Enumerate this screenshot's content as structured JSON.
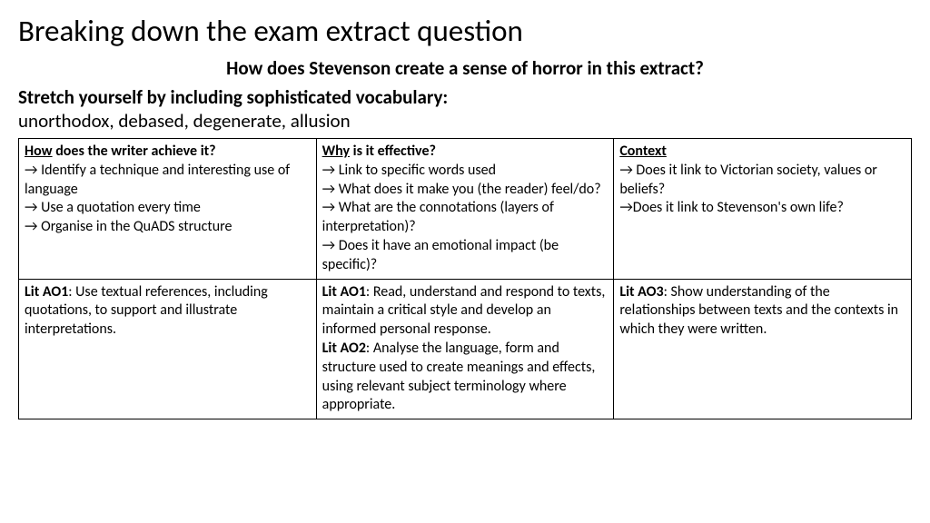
{
  "title": "Breaking down the exam extract question",
  "question": "How does Stevenson create a sense of horror in this extract?",
  "stretch_label": "Stretch yourself by including sophisticated vocabulary:",
  "vocab": "unorthodox, debased, degenerate, allusion",
  "table": {
    "row1": {
      "col1": {
        "header_prefix": "How",
        "header_rest": " does the writer achieve it?",
        "bullets": [
          "→ Identify a technique and interesting use of language",
          "→ Use a quotation every time",
          "→ Organise in the QuADS structure"
        ]
      },
      "col2": {
        "header_prefix": "Why",
        "header_rest": " is it effective?",
        "bullets": [
          "→ Link to specific words used",
          "→ What does it make you (the reader) feel/do?",
          "→ What are the connotations (layers of interpretation)?",
          "→ Does it have an emotional impact (be specific)?"
        ]
      },
      "col3": {
        "header_prefix": "Context",
        "header_rest": "",
        "bullets": [
          "→ Does it link to Victorian society, values or beliefs?",
          "→Does it link to Stevenson's own life?"
        ]
      }
    },
    "row2": {
      "col1": {
        "label": "Lit AO1",
        "text": ": Use textual references, including quotations, to support and illustrate interpretations."
      },
      "col2": {
        "label1": "Lit AO1",
        "text1": ": Read, understand and respond to texts, maintain a critical style and develop an informed personal response.",
        "label2": "Lit AO2",
        "text2": ": Analyse the language, form and structure used to create meanings and effects, using relevant subject terminology where appropriate."
      },
      "col3": {
        "label": "Lit AO3",
        "text": ": Show understanding of the relationships between texts and the contexts in which they were written."
      }
    }
  }
}
